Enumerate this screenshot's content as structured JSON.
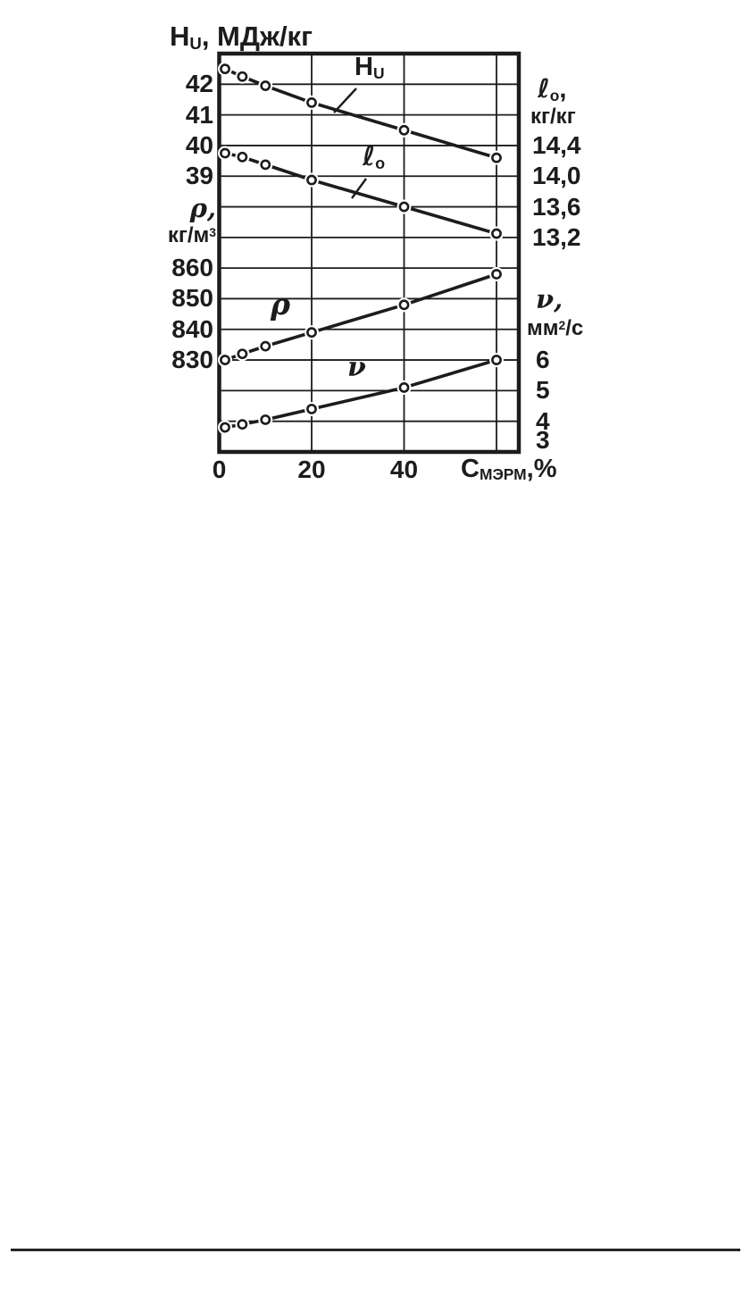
{
  "page": {
    "background": "#ffffff",
    "footer_rule": {
      "visible": true,
      "color": "#242424"
    }
  },
  "chart_data": {
    "type": "line",
    "title": {
      "base": "H",
      "sub": "U",
      "rest": ", МДж/кг"
    },
    "x_axis": {
      "label": {
        "base": "C",
        "sub": "МЭРМ",
        "rest": ",%"
      },
      "ticks": [
        "0",
        "20",
        "40"
      ],
      "tick_values": [
        0,
        20,
        40
      ],
      "gridline_values": [
        20,
        40,
        60
      ],
      "range": [
        0,
        65
      ]
    },
    "axes": {
      "hu": {
        "side": "left",
        "quantity": "Hu",
        "unit": "МДж/кг",
        "ticks": [
          "42",
          "41",
          "40",
          "39"
        ],
        "tick_values": [
          42,
          41,
          40,
          39
        ],
        "first_tick_row": 1,
        "tick_interval": 1
      },
      "l0": {
        "side": "right",
        "quantity": "l0",
        "unit": "кг/кг",
        "label": {
          "base": "ℓ",
          "sub": "o",
          "rest": ",",
          "line2": "кг/кг"
        },
        "ticks": [
          "14,4",
          "14,0",
          "13,6",
          "13,2"
        ],
        "tick_values": [
          14.4,
          14.0,
          13.6,
          13.2
        ],
        "first_tick_row": 3,
        "tick_interval": 0.4
      },
      "rho": {
        "side": "left",
        "quantity": "ρ",
        "unit": "кг/м³",
        "label": {
          "line1": "ρ,",
          "line2": "кг/м",
          "sup": "3"
        },
        "ticks": [
          "860",
          "850",
          "840",
          "830"
        ],
        "tick_values": [
          860,
          850,
          840,
          830
        ],
        "first_tick_row": 7,
        "tick_interval": 10
      },
      "nu": {
        "side": "right",
        "quantity": "ν",
        "unit": "мм²/с",
        "label": {
          "line1": "ν,",
          "line2_base": "мм",
          "sup": "2",
          "line2_rest": "/с"
        },
        "ticks": [
          "6",
          "5",
          "4",
          "3"
        ],
        "tick_values": [
          6,
          5,
          4,
          3
        ],
        "first_tick_row": 10,
        "tick_interval": 1
      }
    },
    "series": [
      {
        "id": "hu",
        "axis": "hu",
        "label": {
          "base": "H",
          "sub": "U"
        },
        "x": [
          0,
          5,
          10,
          20,
          40,
          60
        ],
        "values": [
          42.5,
          42.25,
          41.95,
          41.4,
          40.5,
          39.6
        ]
      },
      {
        "id": "l0",
        "axis": "l0",
        "label": {
          "base": "ℓ",
          "sub": "o"
        },
        "x": [
          0,
          5,
          10,
          20,
          40,
          60
        ],
        "values": [
          14.3,
          14.25,
          14.15,
          13.95,
          13.6,
          13.25
        ]
      },
      {
        "id": "rho",
        "axis": "rho",
        "label": {
          "base": "ρ"
        },
        "x": [
          0,
          5,
          10,
          20,
          40,
          60
        ],
        "values": [
          830,
          832,
          834.5,
          839,
          848,
          858
        ]
      },
      {
        "id": "nu",
        "axis": "nu",
        "label": {
          "base": "ν"
        },
        "x": [
          0,
          5,
          10,
          20,
          40,
          60
        ],
        "values": [
          3.8,
          3.9,
          4.05,
          4.4,
          5.1,
          6.0
        ]
      }
    ],
    "colors": {
      "ink": "#1c1c1c",
      "marker_fill": "#ffffff",
      "background": "#ffffff"
    },
    "grid": true,
    "legend": "inline-curve-labels"
  }
}
